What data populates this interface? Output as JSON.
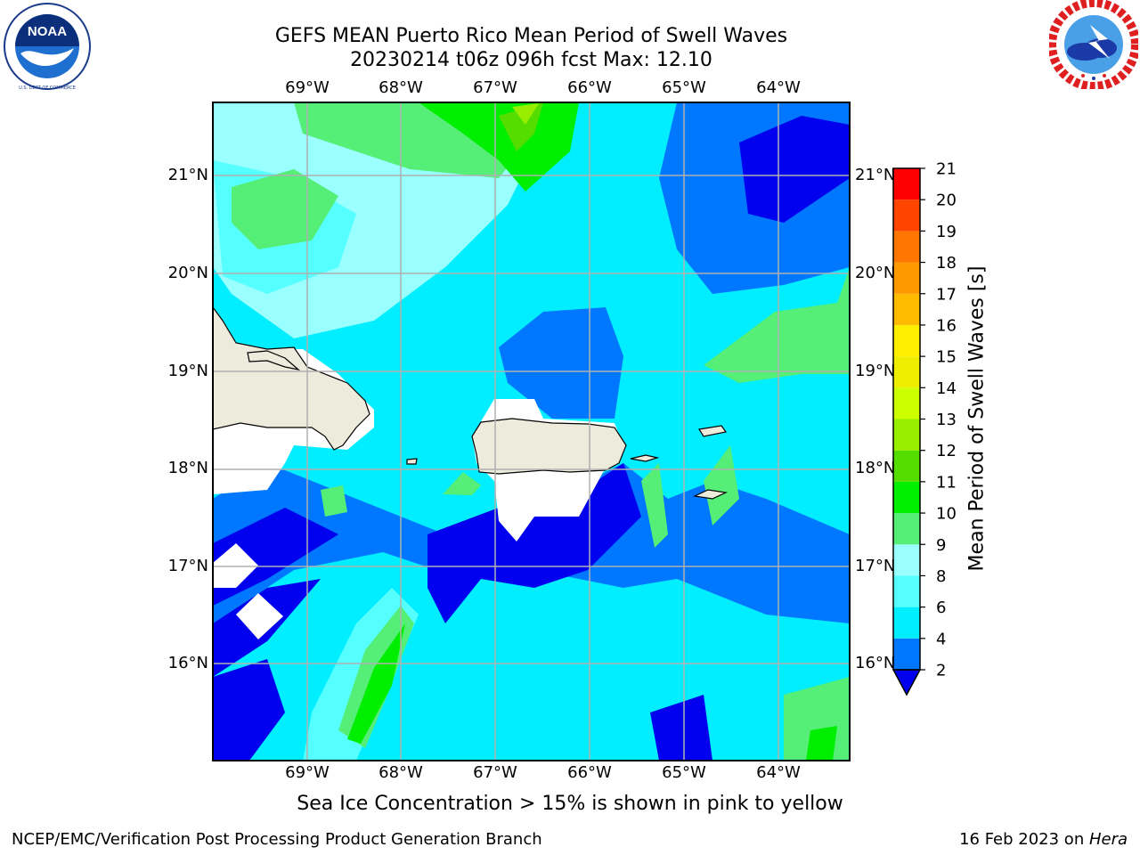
{
  "header": {
    "title_line1": "GEFS MEAN Puerto Rico Mean Period of Swell Waves",
    "title_line2": "20230214 t06z 096h fcst   Max: 12.10"
  },
  "logos": {
    "left": {
      "name": "NOAA",
      "ring_text": "NATIONAL OCEANIC AND ATMOSPHERIC ADMINISTRATION · U.S. DEPARTMENT OF COMMERCE"
    },
    "right": {
      "name": "NATIONAL WEATHER SERVICE"
    }
  },
  "map": {
    "lon_ticks": [
      "69°W",
      "68°W",
      "67°W",
      "66°W",
      "65°W",
      "64°W"
    ],
    "lat_ticks": [
      "21°N",
      "20°N",
      "19°N",
      "18°N",
      "17°N",
      "16°N"
    ],
    "colors": {
      "land": "#edebdc",
      "grid": "#b0b0b0",
      "missing": "#ffffff"
    }
  },
  "chart_data": {
    "type": "heatmap",
    "title": "GEFS MEAN Puerto Rico Mean Period of Swell Waves",
    "subtitle": "20230214 t06z 096h fcst   Max: 12.10",
    "max_value": 12.1,
    "lon_range": [
      -70,
      -63.3
    ],
    "lat_range": [
      15,
      21.75
    ],
    "colorbar": {
      "label": "Mean Period of Swell Waves [s]",
      "ticks": [
        "2",
        "4",
        "6",
        "8",
        "9",
        "10",
        "11",
        "12",
        "13",
        "14",
        "15",
        "16",
        "17",
        "18",
        "19",
        "20",
        "21"
      ],
      "colors": [
        "#0000ee",
        "#0077ff",
        "#00eeff",
        "#55ffff",
        "#99ffff",
        "#55ee77",
        "#00ee00",
        "#55dd00",
        "#99ee00",
        "#ccff00",
        "#eeee00",
        "#ffee00",
        "#ffbb00",
        "#ff9900",
        "#ff7700",
        "#ff4400",
        "#ff0000"
      ]
    }
  },
  "footer": {
    "sea_ice_note": "Sea Ice Concentration > 15% is shown in pink to yellow",
    "left_credit": "NCEP/EMC/Verification Post Processing Product Generation Branch",
    "right_date": "16 Feb 2023 on ",
    "right_machine": "Hera"
  }
}
